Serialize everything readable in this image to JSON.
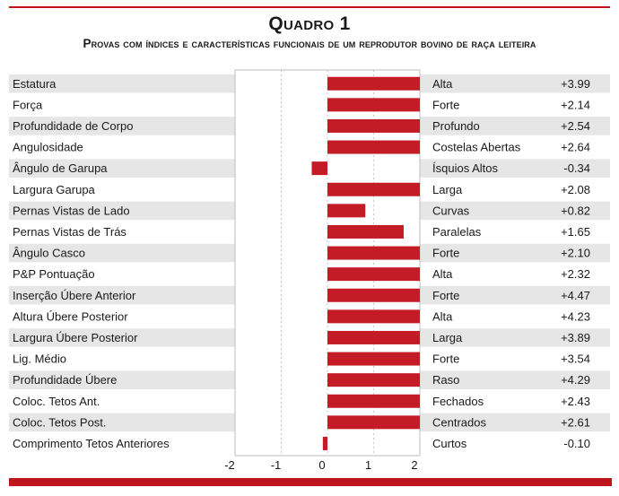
{
  "title": "Quadro 1",
  "subtitle": "Provas com índices e características funcionais de um reprodutor bovino de raça leiteira",
  "colors": {
    "accent": "#c0141c",
    "bar": "#c41c26",
    "stripe": "#e6e6e6"
  },
  "chart_data": {
    "type": "bar",
    "orientation": "horizontal",
    "title": "Quadro 1",
    "subtitle": "Provas com índices e características funcionais de um reprodutor bovino de raça leiteira",
    "xlim": [
      -2,
      2
    ],
    "xticks": [
      "-2",
      "-1",
      "0",
      "1",
      "2"
    ],
    "grid": true,
    "rows": [
      {
        "trait": "Estatura",
        "value": 3.99,
        "descriptor": "Alta",
        "value_label": "+3.99"
      },
      {
        "trait": "Força",
        "value": 2.14,
        "descriptor": "Forte",
        "value_label": "+2.14"
      },
      {
        "trait": "Profundidade de Corpo",
        "value": 2.54,
        "descriptor": "Profundo",
        "value_label": "+2.54"
      },
      {
        "trait": "Angulosidade",
        "value": 2.64,
        "descriptor": "Costelas Abertas",
        "value_label": "+2.64"
      },
      {
        "trait": "Ângulo de Garupa",
        "value": -0.34,
        "descriptor": "Ísquios Altos",
        "value_label": "-0.34"
      },
      {
        "trait": "Largura Garupa",
        "value": 2.08,
        "descriptor": "Larga",
        "value_label": "+2.08"
      },
      {
        "trait": "Pernas Vistas de Lado",
        "value": 0.82,
        "descriptor": "Curvas",
        "value_label": "+0.82"
      },
      {
        "trait": "Pernas Vistas de Trás",
        "value": 1.65,
        "descriptor": "Paralelas",
        "value_label": "+1.65"
      },
      {
        "trait": "Ângulo Casco",
        "value": 2.1,
        "descriptor": "Forte",
        "value_label": "+2.10"
      },
      {
        "trait": "P&P Pontuação",
        "value": 2.32,
        "descriptor": "Alta",
        "value_label": "+2.32"
      },
      {
        "trait": "Inserção Úbere Anterior",
        "value": 4.47,
        "descriptor": "Forte",
        "value_label": "+4.47"
      },
      {
        "trait": "Altura Úbere Posterior",
        "value": 4.23,
        "descriptor": "Alta",
        "value_label": "+4.23"
      },
      {
        "trait": "Largura Úbere Posterior",
        "value": 3.89,
        "descriptor": "Larga",
        "value_label": "+3.89"
      },
      {
        "trait": "Lig. Médio",
        "value": 3.54,
        "descriptor": "Forte",
        "value_label": "+3.54"
      },
      {
        "trait": "Profundidade Úbere",
        "value": 4.29,
        "descriptor": "Raso",
        "value_label": "+4.29"
      },
      {
        "trait": "Coloc. Tetos Ant.",
        "value": 2.43,
        "descriptor": "Fechados",
        "value_label": "+2.43"
      },
      {
        "trait": "Coloc. Tetos Post.",
        "value": 2.61,
        "descriptor": "Centrados",
        "value_label": "+2.61"
      },
      {
        "trait": "Comprimento Tetos Anteriores",
        "value": -0.1,
        "descriptor": "Curtos",
        "value_label": "-0.10"
      }
    ]
  }
}
